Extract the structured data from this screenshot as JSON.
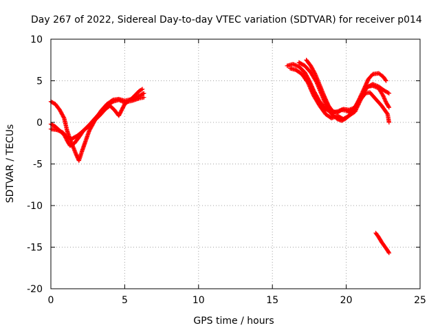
{
  "chart_data": {
    "type": "scatter",
    "title": "Day 267 of 2022, Sidereal Day-to-day VTEC variation (SDTVAR) for receiver p014",
    "xlabel": "GPS time / hours",
    "ylabel": "SDTVAR / TECUs",
    "xlim": [
      0,
      25
    ],
    "ylim": [
      -20,
      10
    ],
    "xticks": [
      0,
      5,
      10,
      15,
      20,
      25
    ],
    "yticks": [
      -20,
      -15,
      -10,
      -5,
      0,
      5,
      10
    ],
    "xtick_labels": [
      "0",
      "5",
      "10",
      "15",
      "20",
      "25"
    ],
    "ytick_labels": [
      "-20",
      "-15",
      "-10",
      "-5",
      "0",
      "5",
      "10"
    ],
    "grid": true,
    "marker": "+",
    "color": "#ff0000",
    "series": [
      {
        "name": "arc-1",
        "points": [
          [
            0.0,
            2.5
          ],
          [
            0.3,
            2.2
          ],
          [
            0.6,
            1.5
          ],
          [
            0.9,
            0.5
          ],
          [
            1.1,
            -1.0
          ],
          [
            1.4,
            -2.5
          ],
          [
            1.7,
            -3.8
          ],
          [
            1.9,
            -4.6
          ],
          [
            2.1,
            -3.5
          ],
          [
            2.3,
            -2.5
          ],
          [
            2.6,
            -1.0
          ],
          [
            3.0,
            0.3
          ],
          [
            3.4,
            1.4
          ],
          [
            3.8,
            2.2
          ],
          [
            4.2,
            2.7
          ],
          [
            4.6,
            2.8
          ],
          [
            5.0,
            2.6
          ],
          [
            5.5,
            2.8
          ],
          [
            6.0,
            3.2
          ],
          [
            6.3,
            3.5
          ]
        ]
      },
      {
        "name": "arc-2",
        "points": [
          [
            0.0,
            -0.2
          ],
          [
            0.3,
            -0.5
          ],
          [
            0.6,
            -1.0
          ],
          [
            0.9,
            -1.5
          ],
          [
            1.1,
            -2.2
          ],
          [
            1.3,
            -2.8
          ],
          [
            1.6,
            -2.5
          ],
          [
            1.9,
            -1.8
          ],
          [
            2.2,
            -1.0
          ],
          [
            2.6,
            -0.3
          ],
          [
            3.0,
            0.5
          ],
          [
            3.4,
            1.3
          ],
          [
            3.8,
            2.0
          ],
          [
            4.2,
            2.5
          ],
          [
            4.6,
            2.7
          ],
          [
            5.0,
            2.4
          ],
          [
            5.5,
            2.6
          ],
          [
            6.0,
            2.9
          ],
          [
            6.3,
            3.0
          ]
        ]
      },
      {
        "name": "arc-3",
        "points": [
          [
            0.0,
            -0.8
          ],
          [
            0.4,
            -0.9
          ],
          [
            0.8,
            -1.2
          ],
          [
            1.1,
            -1.8
          ],
          [
            1.4,
            -2.0
          ],
          [
            1.8,
            -1.6
          ],
          [
            2.2,
            -1.0
          ],
          [
            2.6,
            -0.4
          ],
          [
            3.0,
            0.3
          ],
          [
            3.4,
            1.0
          ],
          [
            3.7,
            1.6
          ],
          [
            4.0,
            2.0
          ],
          [
            4.3,
            1.5
          ],
          [
            4.6,
            0.8
          ],
          [
            5.0,
            2.2
          ],
          [
            5.5,
            2.9
          ],
          [
            6.0,
            3.8
          ],
          [
            6.2,
            4.0
          ]
        ]
      },
      {
        "name": "arc-4",
        "points": [
          [
            16.0,
            6.8
          ],
          [
            16.4,
            7.0
          ],
          [
            16.8,
            6.7
          ],
          [
            17.2,
            6.0
          ],
          [
            17.5,
            5.0
          ],
          [
            17.8,
            3.8
          ],
          [
            18.2,
            2.5
          ],
          [
            18.6,
            1.6
          ],
          [
            19.0,
            1.2
          ],
          [
            19.4,
            1.3
          ],
          [
            19.8,
            1.6
          ],
          [
            20.2,
            1.5
          ],
          [
            20.6,
            1.8
          ],
          [
            21.0,
            3.0
          ],
          [
            21.4,
            4.2
          ],
          [
            21.8,
            4.6
          ],
          [
            22.2,
            4.3
          ],
          [
            22.6,
            3.8
          ],
          [
            22.9,
            3.5
          ]
        ]
      },
      {
        "name": "arc-5",
        "points": [
          [
            16.2,
            6.5
          ],
          [
            16.6,
            6.3
          ],
          [
            17.0,
            5.8
          ],
          [
            17.4,
            4.8
          ],
          [
            17.8,
            3.2
          ],
          [
            18.2,
            2.0
          ],
          [
            18.6,
            1.0
          ],
          [
            19.0,
            0.5
          ],
          [
            19.4,
            0.8
          ],
          [
            19.8,
            0.4
          ],
          [
            20.2,
            0.8
          ],
          [
            20.6,
            1.3
          ],
          [
            21.0,
            2.8
          ],
          [
            21.3,
            3.5
          ],
          [
            21.6,
            3.6
          ],
          [
            22.0,
            2.8
          ],
          [
            22.4,
            2.0
          ],
          [
            22.8,
            1.0
          ],
          [
            22.9,
            0.0
          ]
        ]
      },
      {
        "name": "arc-6",
        "points": [
          [
            16.8,
            7.2
          ],
          [
            17.2,
            6.8
          ],
          [
            17.6,
            6.0
          ],
          [
            18.0,
            4.8
          ],
          [
            18.3,
            3.5
          ],
          [
            18.6,
            2.2
          ],
          [
            19.0,
            1.0
          ],
          [
            19.4,
            0.4
          ],
          [
            19.7,
            0.2
          ],
          [
            20.0,
            0.5
          ],
          [
            20.4,
            1.2
          ],
          [
            20.8,
            2.5
          ],
          [
            21.2,
            4.0
          ],
          [
            21.5,
            5.2
          ],
          [
            21.8,
            5.8
          ],
          [
            22.2,
            5.9
          ],
          [
            22.5,
            5.5
          ],
          [
            22.7,
            5.0
          ]
        ]
      },
      {
        "name": "arc-7",
        "points": [
          [
            17.3,
            7.5
          ],
          [
            17.6,
            6.8
          ],
          [
            17.9,
            5.8
          ],
          [
            18.2,
            4.5
          ],
          [
            18.5,
            3.2
          ],
          [
            18.8,
            2.0
          ],
          [
            19.1,
            1.3
          ],
          [
            19.4,
            1.2
          ],
          [
            19.7,
            1.5
          ],
          [
            20.0,
            1.4
          ],
          [
            20.3,
            1.2
          ],
          [
            20.6,
            1.6
          ],
          [
            21.0,
            3.0
          ],
          [
            21.4,
            4.3
          ],
          [
            21.8,
            4.4
          ],
          [
            22.2,
            4.1
          ],
          [
            22.5,
            3.2
          ],
          [
            22.7,
            2.4
          ],
          [
            22.9,
            1.8
          ]
        ]
      },
      {
        "name": "arc-8",
        "points": [
          [
            22.0,
            -13.3
          ],
          [
            22.2,
            -13.8
          ],
          [
            22.4,
            -14.4
          ],
          [
            22.6,
            -14.9
          ],
          [
            22.8,
            -15.4
          ],
          [
            22.9,
            -15.7
          ]
        ]
      }
    ]
  }
}
